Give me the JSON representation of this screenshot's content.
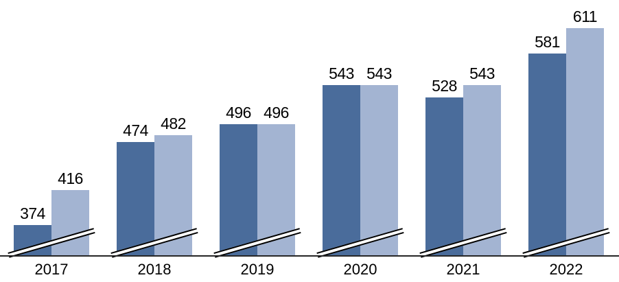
{
  "chart_data": {
    "type": "bar",
    "title": "",
    "categories": [
      "2017",
      "2018",
      "2019",
      "2020",
      "2021",
      "2022"
    ],
    "series": [
      {
        "name": "dark-blue-series",
        "color": "#4A6C9B",
        "values": [
          374,
          474,
          496,
          543,
          528,
          581
        ]
      },
      {
        "name": "light-blue-series",
        "color": "#A3B4D2",
        "values": [
          416,
          482,
          496,
          543,
          543,
          611
        ]
      }
    ],
    "data_labels": true,
    "data_label_color": "#000000",
    "axis_break": true,
    "ylim": [
      337,
      650
    ],
    "grid": false,
    "legend": "none",
    "axis_color": "#262626",
    "background": "#ffffff"
  }
}
